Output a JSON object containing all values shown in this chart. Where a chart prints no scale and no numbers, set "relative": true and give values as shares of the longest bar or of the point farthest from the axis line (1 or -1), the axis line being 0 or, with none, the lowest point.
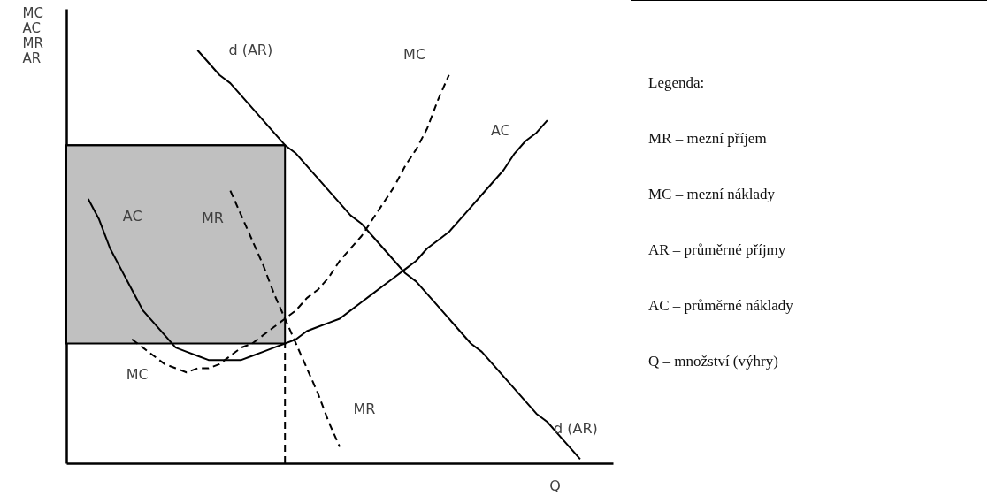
{
  "chart_data": {
    "type": "line",
    "relative": true,
    "tick_labels": false,
    "ylabel": "MC\nAC\nMR\nAR",
    "xlabel": "Q",
    "categories": [
      null,
      null,
      null,
      null,
      null,
      null,
      null,
      null,
      null,
      null,
      null,
      null,
      null,
      null,
      null,
      null,
      null,
      null,
      null,
      null,
      null,
      null,
      null,
      null,
      null,
      null,
      null,
      null,
      null,
      null,
      null,
      null,
      null,
      null,
      null,
      null,
      null,
      null,
      null,
      null,
      null,
      null,
      null,
      null,
      null,
      null,
      null,
      null,
      null,
      null,
      null
    ],
    "series": [
      {
        "color": "#000000",
        "line_style": "solid",
        "values": [
          0.77,
          0.77,
          0.77,
          0.77,
          0.77,
          0.77,
          0.77,
          0.77,
          0.77,
          0.77,
          0.77,
          0.77,
          0.77,
          0.77,
          0.77,
          0.77,
          0.77,
          0.77,
          0.77,
          0.77,
          0.77,
          null,
          null,
          null,
          null,
          null,
          null,
          null,
          null,
          null,
          null,
          null,
          null,
          null,
          null,
          null,
          null,
          null,
          null,
          null,
          null,
          null,
          null,
          null,
          null,
          null,
          null,
          null,
          null,
          null,
          null
        ],
        "lower": [
          0.29,
          0.29,
          0.29,
          0.29,
          0.29,
          0.29,
          0.29,
          0.29,
          0.29,
          0.29,
          0.29,
          0.29,
          0.29,
          0.29,
          0.29,
          0.29,
          0.29,
          0.29,
          0.29,
          0.29,
          0.29,
          null,
          null,
          null,
          null,
          null,
          null,
          null,
          null,
          null,
          null,
          null,
          null,
          null,
          null,
          null,
          null,
          null,
          null,
          null,
          null,
          null,
          null,
          null,
          null,
          null,
          null,
          null,
          null,
          null,
          null
        ],
        "upper": [
          0.77,
          0.77,
          0.77,
          0.77,
          0.77,
          0.77,
          0.77,
          0.77,
          0.77,
          0.77,
          0.77,
          0.77,
          0.77,
          0.77,
          0.77,
          0.77,
          0.77,
          0.77,
          0.77,
          0.77,
          0.77,
          null,
          null,
          null,
          null,
          null,
          null,
          null,
          null,
          null,
          null,
          null,
          null,
          null,
          null,
          null,
          null,
          null,
          null,
          null,
          null,
          null,
          null,
          null,
          null,
          null,
          null,
          null,
          null,
          null,
          null
        ]
      },
      {
        "name": "d (AR)",
        "color": "#000000",
        "line_style": "solid",
        "values": [
          null,
          null,
          null,
          null,
          null,
          null,
          null,
          null,
          null,
          null,
          null,
          null,
          1,
          0.97,
          0.94,
          0.92,
          0.89,
          0.86,
          0.83,
          0.8,
          0.77,
          0.75,
          0.72,
          0.69,
          0.66,
          0.63,
          0.6,
          0.58,
          0.55,
          0.52,
          0.49,
          0.46,
          0.44,
          0.41,
          0.38,
          0.35,
          0.32,
          0.29,
          0.27,
          0.24,
          0.21,
          0.18,
          0.15,
          0.12,
          0.1,
          0.07,
          0.04,
          0.01,
          null,
          null,
          null
        ]
      },
      {
        "name": "MC",
        "color": "#000000",
        "line_style": "dashed",
        "values": [
          null,
          null,
          null,
          null,
          null,
          null,
          0.3,
          0.28,
          0.26,
          0.24,
          0.23,
          0.22,
          0.23,
          0.23,
          0.24,
          0.26,
          0.28,
          0.29,
          0.31,
          0.33,
          0.35,
          0.37,
          0.4,
          0.42,
          0.45,
          0.49,
          0.52,
          0.55,
          0.59,
          0.63,
          0.67,
          0.72,
          0.76,
          0.81,
          0.88,
          0.94,
          null,
          null,
          null,
          null,
          null,
          null,
          null,
          null,
          null,
          null,
          null,
          null,
          null,
          null,
          null
        ]
      },
      {
        "name": "AC",
        "color": "#000000",
        "line_style": "solid",
        "values": [
          null,
          null,
          0.64,
          0.59,
          0.52,
          0.47,
          0.42,
          0.37,
          0.34,
          0.31,
          0.28,
          0.27,
          0.26,
          0.25,
          0.25,
          0.25,
          0.25,
          0.26,
          0.27,
          0.28,
          0.29,
          0.3,
          0.32,
          0.33,
          0.34,
          0.35,
          0.37,
          0.39,
          0.41,
          0.43,
          0.45,
          0.47,
          0.49,
          0.52,
          0.54,
          0.56,
          0.59,
          0.62,
          0.65,
          0.68,
          0.71,
          0.75,
          0.78,
          0.8,
          0.83,
          null,
          null,
          null,
          null,
          null,
          null
        ]
      },
      {
        "name": "MR",
        "color": "#000000",
        "line_style": "dashed",
        "values": [
          null,
          null,
          null,
          null,
          null,
          null,
          null,
          null,
          null,
          null,
          null,
          null,
          null,
          null,
          null,
          0.66,
          0.6,
          0.54,
          0.48,
          0.41,
          0.35,
          0.29,
          0.23,
          0.17,
          0.1,
          0.04,
          null,
          null,
          null,
          null,
          null,
          null,
          null,
          null,
          null,
          null,
          null,
          null,
          null,
          null,
          null,
          null,
          null,
          null,
          null,
          null,
          null,
          null,
          null,
          null,
          null
        ]
      }
    ],
    "annotations": [
      "Legenda:",
      "MR – mezní příjem",
      "MC – mezní náklady",
      "AR – průměrné příjmy",
      "AC – průměrné náklady",
      "Q – množství (výhry)"
    ]
  }
}
